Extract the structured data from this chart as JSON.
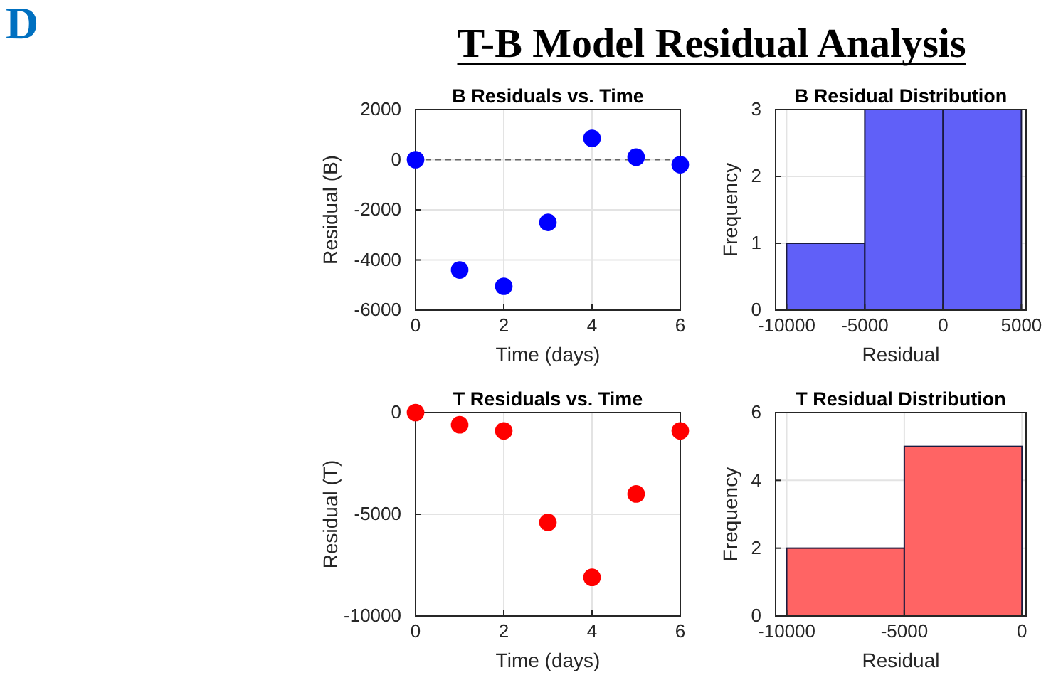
{
  "chart_data": [
    {
      "type": "scatter",
      "title": "B Residuals vs. Time",
      "xlabel": "Time (days)",
      "ylabel": "Residual (B)",
      "x": [
        0,
        1,
        2,
        3,
        4,
        5,
        6
      ],
      "series": [
        {
          "color": "#0000ff",
          "values": [
            0,
            -4400,
            -5050,
            -2500,
            850,
            100,
            -200
          ]
        }
      ],
      "xlim": [
        0,
        6
      ],
      "xticks": [
        0,
        2,
        4,
        6
      ],
      "ylim": [
        -6000,
        2000
      ],
      "yticks": [
        -6000,
        -4000,
        -2000,
        0,
        2000
      ],
      "grid": true,
      "marker": "circle",
      "ref_lines": [
        {
          "axis": "y",
          "value": 0,
          "color": "#666666",
          "line_style": "dashed"
        }
      ]
    },
    {
      "type": "histogram",
      "title": "B Residual Distribution",
      "xlabel": "Residual",
      "ylabel": "Frequency",
      "bins": [
        -10000,
        -5000,
        0,
        5000
      ],
      "values": [
        1,
        3,
        3
      ],
      "color": "#6060f8",
      "xlim": [
        -10700,
        5300
      ],
      "xticks": [
        -10000,
        -5000,
        0,
        5000
      ],
      "ylim": [
        0,
        3
      ],
      "yticks": [
        0,
        1,
        2,
        3
      ],
      "grid": true
    },
    {
      "type": "scatter",
      "title": "T Residuals vs. Time",
      "xlabel": "Time (days)",
      "ylabel": "Residual (T)",
      "x": [
        0,
        1,
        2,
        3,
        4,
        5,
        6
      ],
      "series": [
        {
          "color": "#ff0000",
          "values": [
            0,
            -600,
            -900,
            -5400,
            -8100,
            -4000,
            -900
          ]
        }
      ],
      "xlim": [
        0,
        6
      ],
      "xticks": [
        0,
        2,
        4,
        6
      ],
      "ylim": [
        -10000,
        0
      ],
      "yticks": [
        -10000,
        -5000,
        0
      ],
      "grid": true,
      "marker": "circle"
    },
    {
      "type": "histogram",
      "title": "T Residual Distribution",
      "xlabel": "Residual",
      "ylabel": "Frequency",
      "bins": [
        -10000,
        -5000,
        0
      ],
      "values": [
        2,
        5
      ],
      "color": "#ff6464",
      "xlim": [
        -10470,
        175
      ],
      "xticks": [
        -10000,
        -5000,
        0
      ],
      "ylim": [
        0,
        6
      ],
      "yticks": [
        0,
        2,
        4,
        6
      ],
      "grid": true
    },
    {
      "type": "other",
      "title": "T-B Model Residual Analysis",
      "annotations": [
        "D"
      ]
    }
  ]
}
